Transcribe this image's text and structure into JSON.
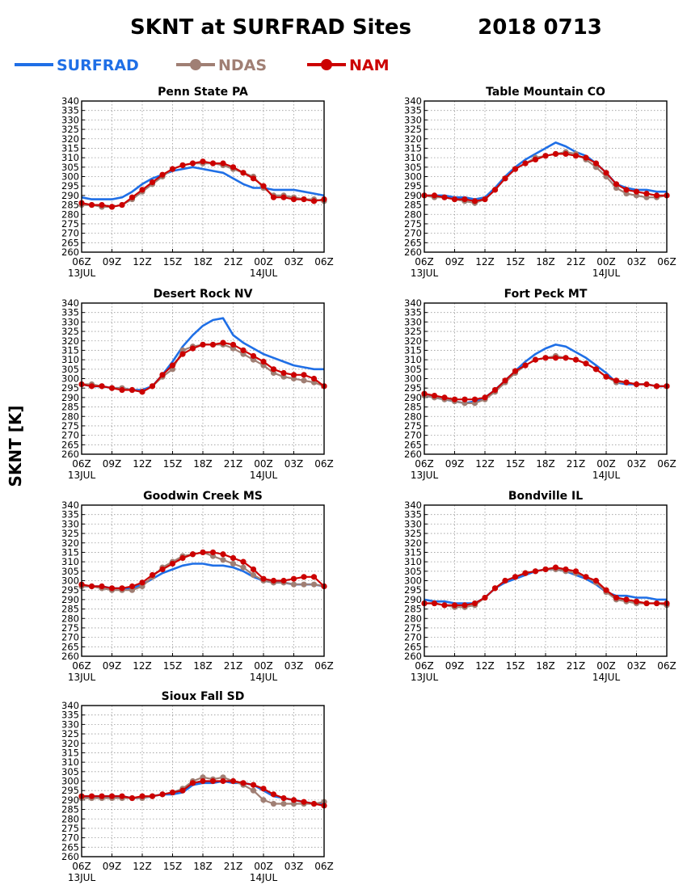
{
  "header": {
    "title": "SKNT at SURFRAD Sites",
    "date": "2018 0713",
    "ylabel": "SKNT [K]"
  },
  "legend": {
    "items": [
      {
        "name": "SURFRAD",
        "color": "#1f6fe6",
        "marker": "none"
      },
      {
        "name": "NDAS",
        "color": "#a07f74",
        "marker": "circle"
      },
      {
        "name": "NAM",
        "color": "#cc0000",
        "marker": "circle"
      }
    ]
  },
  "axes": {
    "x_ticks": [
      0,
      3,
      6,
      9,
      12,
      15,
      18,
      21,
      24
    ],
    "x_tick_labels": [
      "06Z",
      "09Z",
      "12Z",
      "15Z",
      "18Z",
      "21Z",
      "00Z",
      "03Z",
      "06Z"
    ],
    "date_labels": [
      "13JUL",
      "14JUL"
    ],
    "y_ticks": [
      260,
      265,
      270,
      275,
      280,
      285,
      290,
      295,
      300,
      305,
      310,
      315,
      320,
      325,
      330,
      335,
      340
    ],
    "ylim": [
      260,
      340
    ],
    "xlim": [
      0,
      24
    ],
    "grid": true
  },
  "chart_data": [
    {
      "type": "line",
      "title": "Penn State PA",
      "x": [
        0,
        1,
        2,
        3,
        4,
        5,
        6,
        7,
        8,
        9,
        10,
        11,
        12,
        13,
        14,
        15,
        16,
        17,
        18,
        19,
        20,
        21,
        22,
        23,
        24
      ],
      "series": [
        {
          "name": "SURFRAD",
          "values": [
            289,
            288,
            288,
            288,
            289,
            292,
            296,
            299,
            301,
            303,
            304,
            305,
            304,
            303,
            302,
            299,
            296,
            294,
            294,
            293,
            293,
            293,
            292,
            291,
            290
          ]
        },
        {
          "name": "NDAS",
          "values": [
            285,
            285,
            284,
            284,
            285,
            288,
            292,
            296,
            300,
            304,
            306,
            307,
            307,
            307,
            306,
            304,
            302,
            300,
            294,
            290,
            290,
            289,
            288,
            288,
            287
          ]
        },
        {
          "name": "NAM",
          "values": [
            286,
            285,
            285,
            284,
            285,
            289,
            293,
            297,
            301,
            304,
            306,
            307,
            308,
            307,
            307,
            305,
            302,
            299,
            295,
            289,
            289,
            288,
            288,
            287,
            288
          ]
        }
      ]
    },
    {
      "type": "line",
      "title": "Table Mountain CO",
      "x": [
        0,
        1,
        2,
        3,
        4,
        5,
        6,
        7,
        8,
        9,
        10,
        11,
        12,
        13,
        14,
        15,
        16,
        17,
        18,
        19,
        20,
        21,
        22,
        23,
        24
      ],
      "series": [
        {
          "name": "SURFRAD",
          "values": [
            290,
            290,
            290,
            289,
            289,
            288,
            289,
            294,
            300,
            305,
            309,
            312,
            315,
            318,
            316,
            313,
            311,
            307,
            302,
            296,
            294,
            293,
            293,
            292,
            292
          ]
        },
        {
          "name": "NDAS",
          "values": [
            290,
            289,
            289,
            288,
            287,
            286,
            288,
            293,
            299,
            304,
            307,
            310,
            311,
            312,
            313,
            312,
            309,
            305,
            300,
            294,
            291,
            290,
            289,
            289,
            290
          ]
        },
        {
          "name": "NAM",
          "values": [
            290,
            290,
            289,
            288,
            288,
            287,
            288,
            293,
            299,
            304,
            307,
            309,
            311,
            312,
            312,
            311,
            310,
            307,
            302,
            296,
            293,
            292,
            291,
            290,
            290
          ]
        }
      ]
    },
    {
      "type": "line",
      "title": "Desert Rock NV",
      "x": [
        0,
        1,
        2,
        3,
        4,
        5,
        6,
        7,
        8,
        9,
        10,
        11,
        12,
        13,
        14,
        15,
        16,
        17,
        18,
        19,
        20,
        21,
        22,
        23,
        24
      ],
      "series": [
        {
          "name": "SURFRAD",
          "values": [
            297,
            296,
            296,
            295,
            295,
            294,
            294,
            296,
            302,
            309,
            317,
            323,
            328,
            331,
            332,
            323,
            319,
            316,
            313,
            311,
            309,
            307,
            306,
            305,
            305
          ]
        },
        {
          "name": "NDAS",
          "values": [
            297,
            297,
            296,
            295,
            295,
            294,
            293,
            296,
            301,
            305,
            315,
            317,
            318,
            318,
            318,
            316,
            313,
            310,
            307,
            303,
            301,
            300,
            299,
            298,
            296
          ]
        },
        {
          "name": "NAM",
          "values": [
            297,
            296,
            296,
            295,
            294,
            294,
            293,
            296,
            302,
            307,
            313,
            316,
            318,
            318,
            319,
            318,
            315,
            312,
            309,
            305,
            303,
            302,
            302,
            300,
            296
          ]
        }
      ]
    },
    {
      "type": "line",
      "title": "Fort Peck MT",
      "x": [
        0,
        1,
        2,
        3,
        4,
        5,
        6,
        7,
        8,
        9,
        10,
        11,
        12,
        13,
        14,
        15,
        16,
        17,
        18,
        19,
        20,
        21,
        22,
        23,
        24
      ],
      "series": [
        {
          "name": "SURFRAD",
          "values": [
            291,
            290,
            289,
            288,
            287,
            288,
            290,
            294,
            299,
            304,
            309,
            313,
            316,
            318,
            317,
            314,
            311,
            307,
            303,
            298,
            297,
            297,
            297,
            296,
            296
          ]
        },
        {
          "name": "NDAS",
          "values": [
            291,
            290,
            289,
            288,
            287,
            287,
            289,
            293,
            298,
            303,
            307,
            310,
            311,
            312,
            311,
            310,
            308,
            305,
            301,
            298,
            298,
            297,
            297,
            296,
            296
          ]
        },
        {
          "name": "NAM",
          "values": [
            292,
            291,
            290,
            289,
            289,
            289,
            290,
            294,
            299,
            304,
            307,
            310,
            311,
            311,
            311,
            310,
            308,
            305,
            301,
            299,
            298,
            297,
            297,
            296,
            296
          ]
        }
      ]
    },
    {
      "type": "line",
      "title": "Goodwin Creek MS",
      "x": [
        0,
        1,
        2,
        3,
        4,
        5,
        6,
        7,
        8,
        9,
        10,
        11,
        12,
        13,
        14,
        15,
        16,
        17,
        18,
        19,
        20,
        21,
        22,
        23,
        24
      ],
      "series": [
        {
          "name": "SURFRAD",
          "values": [
            297,
            297,
            297,
            296,
            296,
            296,
            298,
            301,
            304,
            306,
            308,
            309,
            309,
            308,
            308,
            307,
            305,
            302,
            300,
            299,
            299,
            298,
            298,
            298,
            297
          ]
        },
        {
          "name": "NDAS",
          "values": [
            297,
            297,
            296,
            295,
            295,
            295,
            297,
            302,
            307,
            310,
            313,
            314,
            315,
            313,
            311,
            309,
            307,
            303,
            300,
            299,
            299,
            298,
            298,
            298,
            297
          ]
        },
        {
          "name": "NAM",
          "values": [
            298,
            297,
            297,
            296,
            296,
            297,
            299,
            303,
            306,
            309,
            312,
            314,
            315,
            315,
            314,
            312,
            310,
            306,
            301,
            300,
            300,
            301,
            302,
            302,
            297
          ]
        }
      ]
    },
    {
      "type": "line",
      "title": "Bondville IL",
      "x": [
        0,
        1,
        2,
        3,
        4,
        5,
        6,
        7,
        8,
        9,
        10,
        11,
        12,
        13,
        14,
        15,
        16,
        17,
        18,
        19,
        20,
        21,
        22,
        23,
        24
      ],
      "series": [
        {
          "name": "SURFRAD",
          "values": [
            290,
            289,
            289,
            288,
            288,
            288,
            291,
            296,
            299,
            301,
            303,
            305,
            306,
            306,
            305,
            303,
            301,
            298,
            294,
            292,
            292,
            291,
            291,
            290,
            290
          ]
        },
        {
          "name": "NDAS",
          "values": [
            288,
            288,
            287,
            286,
            286,
            287,
            291,
            296,
            300,
            302,
            304,
            305,
            306,
            306,
            305,
            304,
            302,
            299,
            294,
            290,
            289,
            288,
            288,
            288,
            287
          ]
        },
        {
          "name": "NAM",
          "values": [
            288,
            288,
            287,
            287,
            287,
            288,
            291,
            296,
            300,
            302,
            304,
            305,
            306,
            307,
            306,
            305,
            302,
            300,
            295,
            291,
            290,
            289,
            288,
            288,
            288
          ]
        }
      ]
    },
    {
      "type": "line",
      "title": "Sioux Fall SD",
      "x": [
        0,
        1,
        2,
        3,
        4,
        5,
        6,
        7,
        8,
        9,
        10,
        11,
        12,
        13,
        14,
        15,
        16,
        17,
        18,
        19,
        20,
        21,
        22,
        23,
        24
      ],
      "series": [
        {
          "name": "SURFRAD",
          "values": [
            292,
            292,
            292,
            292,
            292,
            291,
            291,
            292,
            293,
            293,
            294,
            298,
            299,
            299,
            300,
            299,
            299,
            298,
            295,
            292,
            291,
            290,
            289,
            288,
            288
          ]
        },
        {
          "name": "NDAS",
          "values": [
            291,
            291,
            291,
            291,
            291,
            291,
            291,
            292,
            293,
            294,
            296,
            300,
            302,
            301,
            302,
            300,
            298,
            295,
            290,
            288,
            288,
            288,
            288,
            288,
            289
          ]
        },
        {
          "name": "NAM",
          "values": [
            292,
            292,
            292,
            292,
            292,
            291,
            292,
            292,
            293,
            294,
            295,
            299,
            300,
            300,
            300,
            300,
            299,
            298,
            296,
            293,
            291,
            290,
            289,
            288,
            287
          ]
        }
      ]
    }
  ]
}
